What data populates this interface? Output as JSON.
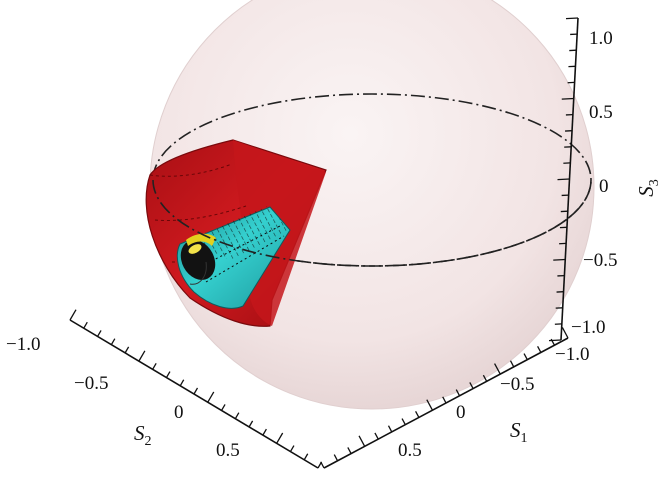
{
  "figure": {
    "axes": {
      "s1": {
        "title_main": "S",
        "title_sub": "1",
        "ticks": [
          "−1.0",
          "−0.5",
          "0",
          "0.5"
        ]
      },
      "s2": {
        "title_main": "S",
        "title_sub": "2",
        "ticks": [
          "−1.0",
          "−0.5",
          "0",
          "0.5"
        ]
      },
      "s3": {
        "title_main": "S",
        "title_sub": "3",
        "ticks": [
          "1.0",
          "0.5",
          "0",
          "−0.5",
          "−1.0"
        ]
      }
    },
    "colors": {
      "sphere": "#f3e6e6",
      "sphere_edge": "#e2d4d4",
      "equator": "#111111",
      "outer_cone": "#c8151a",
      "outer_cone_dark": "#8f0c10",
      "middle_cone": "#28c4c4",
      "middle_cone_dark": "#1b8f93",
      "inner_cone": "#e5d81e",
      "inner_core": "#151515",
      "axis": "#111111"
    }
  }
}
